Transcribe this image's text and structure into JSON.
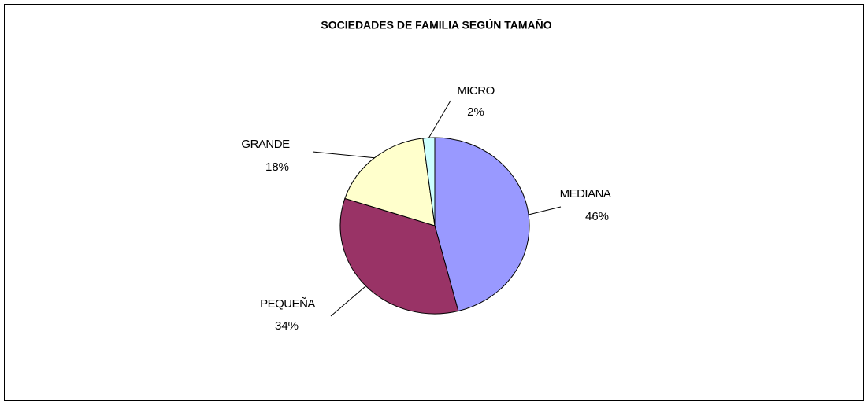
{
  "chart_data": {
    "type": "pie",
    "title": "SOCIEDADES DE FAMILIA SEGÚN TAMAÑO",
    "categories": [
      "MEDIANA",
      "PEQUEÑA",
      "GRANDE",
      "MICRO"
    ],
    "values": [
      46,
      34,
      18,
      2
    ],
    "value_labels": [
      "46%",
      "34%",
      "18%",
      "2%"
    ],
    "colors": [
      "#9999ff",
      "#993366",
      "#ffffcc",
      "#ccffff"
    ]
  }
}
